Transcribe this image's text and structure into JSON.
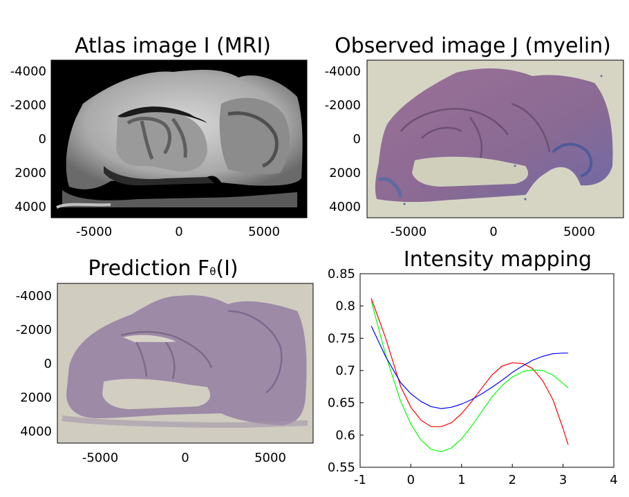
{
  "panels": [
    {
      "title": "Atlas image I (MRI)",
      "image_kind": "grayscale MRI brain slice",
      "x_ticks": [
        "-5000",
        "0",
        "5000"
      ],
      "y_ticks": [
        "-4000",
        "-2000",
        "0",
        "2000",
        "4000"
      ]
    },
    {
      "title": "Observed image J (myelin)",
      "image_kind": "myelin-stained histology slice",
      "x_ticks": [
        "-5000",
        "0",
        "5000"
      ],
      "y_ticks": [
        "-4000",
        "-2000",
        "0",
        "2000",
        "4000"
      ]
    },
    {
      "title_main": "Prediction F",
      "title_sub": "θ",
      "title_tail": "(I)",
      "image_kind": "predicted histology image",
      "x_ticks": [
        "-5000",
        "0",
        "5000"
      ],
      "y_ticks": [
        "-4000",
        "-2000",
        "0",
        "2000",
        "4000"
      ]
    }
  ],
  "colors": {
    "red": "#ff0000",
    "green": "#00ff00",
    "blue": "#0000ff",
    "mri_bg": "#000000",
    "slide_bg": "#d6d5c4",
    "tissue": "#8e6e92",
    "pred_bg": "#d0ccbf",
    "pred_tissue": "#9d8aa7"
  },
  "chart_data": {
    "type": "line",
    "title": "Intensity mapping",
    "xlabel": "",
    "ylabel": "",
    "xlim": [
      -1,
      4
    ],
    "ylim": [
      0.55,
      0.85
    ],
    "x_ticks": [
      "-1",
      "0",
      "1",
      "2",
      "3",
      "4"
    ],
    "y_ticks": [
      "0.55",
      "0.6",
      "0.65",
      "0.7",
      "0.75",
      "0.8",
      "0.85"
    ],
    "series": [
      {
        "color": "red",
        "x": [
          -0.78,
          -0.5,
          -0.2,
          0.0,
          0.2,
          0.4,
          0.6,
          0.8,
          1.0,
          1.2,
          1.4,
          1.6,
          1.8,
          2.0,
          2.2,
          2.4,
          2.6,
          2.8,
          3.0,
          3.1
        ],
        "y": [
          0.812,
          0.751,
          0.675,
          0.643,
          0.623,
          0.613,
          0.613,
          0.619,
          0.633,
          0.652,
          0.673,
          0.693,
          0.707,
          0.712,
          0.711,
          0.703,
          0.684,
          0.655,
          0.61,
          0.585
        ]
      },
      {
        "color": "green",
        "x": [
          -0.78,
          -0.5,
          -0.2,
          0.0,
          0.2,
          0.4,
          0.6,
          0.8,
          1.0,
          1.2,
          1.4,
          1.6,
          1.8,
          2.0,
          2.2,
          2.4,
          2.6,
          2.8,
          3.0,
          3.1
        ],
        "y": [
          0.808,
          0.725,
          0.652,
          0.617,
          0.592,
          0.578,
          0.574,
          0.58,
          0.594,
          0.614,
          0.637,
          0.659,
          0.677,
          0.69,
          0.698,
          0.701,
          0.7,
          0.693,
          0.68,
          0.673
        ]
      },
      {
        "color": "blue",
        "x": [
          -0.78,
          -0.5,
          -0.2,
          0.0,
          0.2,
          0.4,
          0.6,
          0.8,
          1.0,
          1.2,
          1.4,
          1.6,
          1.8,
          2.0,
          2.2,
          2.4,
          2.6,
          2.8,
          3.0,
          3.1
        ],
        "y": [
          0.769,
          0.722,
          0.681,
          0.664,
          0.652,
          0.644,
          0.641,
          0.643,
          0.648,
          0.655,
          0.664,
          0.674,
          0.685,
          0.697,
          0.707,
          0.716,
          0.722,
          0.726,
          0.727,
          0.727
        ]
      }
    ]
  }
}
